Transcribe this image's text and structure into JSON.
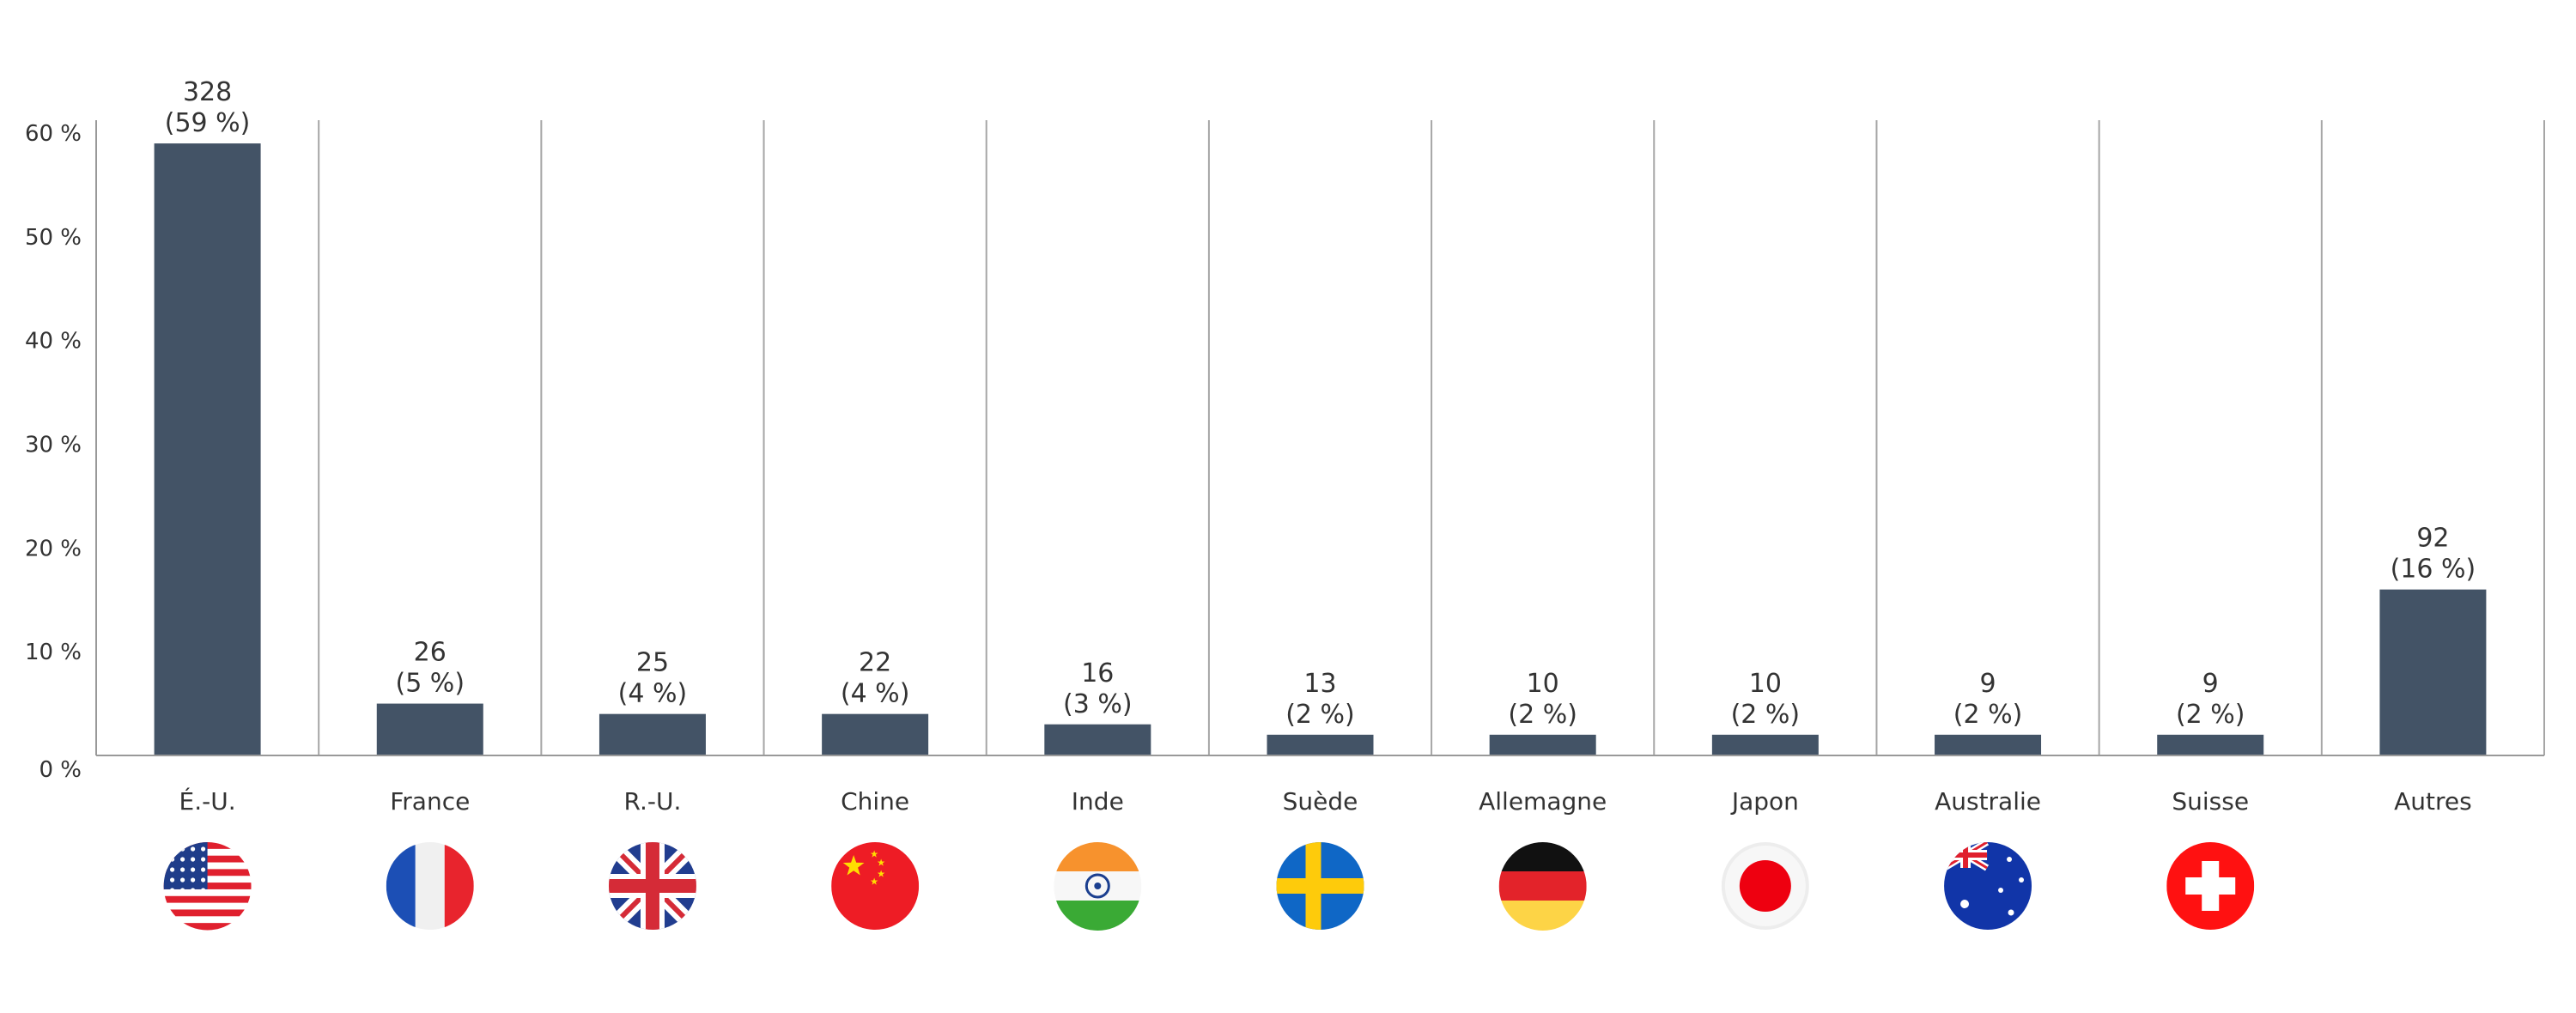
{
  "chart_data": {
    "type": "bar",
    "title": "",
    "xlabel": "",
    "ylabel": "",
    "categories": [
      "É.-U.",
      "France",
      "R.-U.",
      "Chine",
      "Inde",
      "Suède",
      "Allemagne",
      "Japon",
      "Australie",
      "Suisse",
      "Autres"
    ],
    "values": [
      328,
      26,
      25,
      22,
      16,
      13,
      10,
      10,
      9,
      9,
      92
    ],
    "percent_values": [
      59,
      5,
      4,
      4,
      3,
      2,
      2,
      2,
      2,
      2,
      16
    ],
    "value_labels": [
      "328",
      "26",
      "25",
      "22",
      "16",
      "13",
      "10",
      "10",
      "9",
      "9",
      "92"
    ],
    "percent_labels": [
      "(59 %)",
      "(5 %)",
      "(4 %)",
      "(4 %)",
      "(3 %)",
      "(2 %)",
      "(2 %)",
      "(2 %)",
      "(2 %)",
      "(2 %)",
      "(16 %)"
    ],
    "ylim": [
      0,
      60
    ],
    "yticks": [
      0,
      10,
      20,
      30,
      40,
      50,
      60
    ],
    "ytick_labels": [
      "0 %",
      "10 %",
      "20 %",
      "30 %",
      "40 %",
      "50 %",
      "60 %"
    ],
    "grid": "vertical separators between categories",
    "legend": "none",
    "flags": [
      "usa-flag-icon",
      "france-flag-icon",
      "uk-flag-icon",
      "china-flag-icon",
      "india-flag-icon",
      "sweden-flag-icon",
      "germany-flag-icon",
      "japan-flag-icon",
      "australia-flag-icon",
      "switzerland-flag-icon",
      null
    ],
    "colors": {
      "bar": "#435366",
      "axis": "#999999",
      "separator": "#a6a6a6",
      "text": "#333333"
    }
  }
}
